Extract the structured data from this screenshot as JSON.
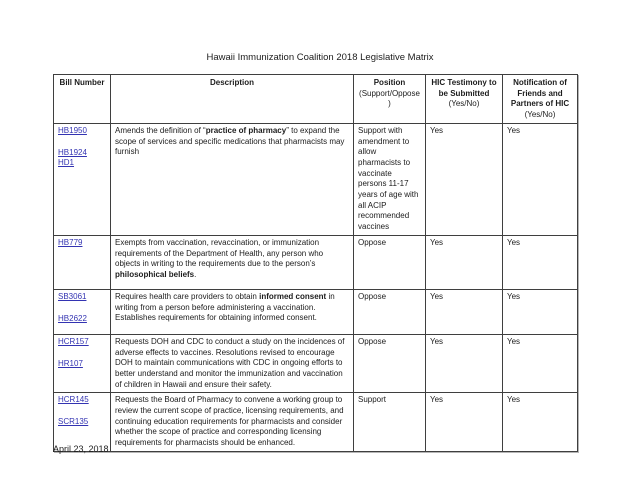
{
  "document": {
    "title": "Hawaii Immunization Coalition 2018 Legislative Matrix",
    "footer_date": "April 23, 2018"
  },
  "colors": {
    "link_blue": "#3333b2",
    "border": "#3f3f3f",
    "text": "#1c1c1c",
    "page_background": "#ffffff"
  },
  "table": {
    "headers": [
      {
        "title": "Bill Number",
        "subtitle": ""
      },
      {
        "title": "Description",
        "subtitle": ""
      },
      {
        "title": "Position",
        "subtitle": "(Support/Oppose)"
      },
      {
        "title": "HIC Testimony to be Submitted",
        "subtitle": "(Yes/No)"
      },
      {
        "title": "Notification of Friends and Partners of HIC",
        "subtitle": "(Yes/No)"
      }
    ],
    "rows": [
      {
        "bills": [
          "HB1950",
          "",
          "HB1924",
          "HD1"
        ],
        "description": [
          {
            "text": "Amends the definition of “",
            "bold": false
          },
          {
            "text": "practice of pharmacy",
            "bold": true
          },
          {
            "text": "” to expand the scope of services and specific medications that pharmacists may furnish",
            "bold": false
          }
        ],
        "position": "Support with amendment to allow pharmacists to vaccinate persons 11-17 years of age with all ACIP recommended vaccines",
        "hic_testimony": "Yes",
        "notification": "Yes"
      },
      {
        "bills": [
          "HB779"
        ],
        "description": [
          {
            "text": "Exempts from vaccination, revaccination, or immunization requirements of the Department of Health, any person who objects in writing to the requirements due to the person’s ",
            "bold": false
          },
          {
            "text": "philosophical beliefs",
            "bold": true
          },
          {
            "text": ".",
            "bold": false
          }
        ],
        "position": "Oppose",
        "hic_testimony": "Yes",
        "notification": "Yes"
      },
      {
        "bills": [
          "SB3061",
          "",
          "HB2622"
        ],
        "description": [
          {
            "text": "Requires health care providers to obtain ",
            "bold": false
          },
          {
            "text": "informed consent",
            "bold": true
          },
          {
            "text": " in writing from a person before administering a vaccination. Establishes requirements for obtaining informed consent.",
            "bold": false
          }
        ],
        "position": "Oppose",
        "hic_testimony": "Yes",
        "notification": "Yes"
      },
      {
        "bills": [
          "HCR157",
          "",
          "HR107"
        ],
        "description": [
          {
            "text": "Requests DOH and CDC to conduct a study on the incidences of adverse effects to vaccines. Resolutions revised to encourage DOH to maintain communications with CDC in ongoing efforts to better understand and monitor the immunization and vaccination of children in Hawaii and ensure their safety.",
            "bold": false
          }
        ],
        "position": "Oppose",
        "hic_testimony": "Yes",
        "notification": "Yes"
      },
      {
        "bills": [
          "HCR145",
          "",
          "SCR135"
        ],
        "description": [
          {
            "text": "Requests the Board of Pharmacy to convene a working group to review the current scope of practice, licensing requirements, and continuing education requirements for pharmacists and consider whether the scope of practice and corresponding licensing requirements for pharmacists should be enhanced.",
            "bold": false
          }
        ],
        "position": "Support",
        "hic_testimony": "Yes",
        "notification": "Yes"
      }
    ]
  }
}
